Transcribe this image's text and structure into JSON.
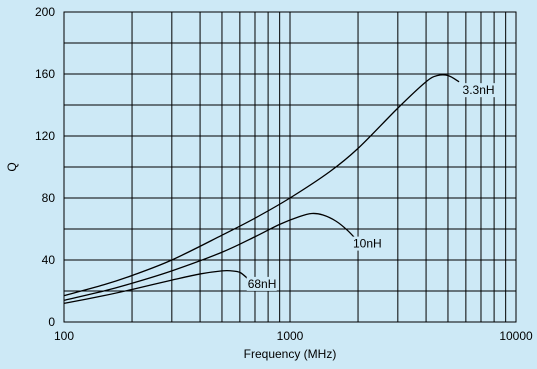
{
  "chart_data": {
    "type": "line",
    "title": "",
    "xlabel": "Frequency (MHz)",
    "ylabel": "Q",
    "x_scale": "log",
    "xlim": [
      100,
      10000
    ],
    "ylim": [
      0,
      200
    ],
    "x_ticks": [
      100,
      1000,
      10000
    ],
    "y_ticks": [
      0,
      40,
      80,
      120,
      160,
      200
    ],
    "grid": true,
    "legend": "none",
    "series": [
      {
        "name": "3.3nH",
        "x": [
          100,
          150,
          200,
          300,
          500,
          700,
          1000,
          1500,
          2000,
          3000,
          4000,
          4500,
          5000,
          5600
        ],
        "y": [
          17,
          24,
          30,
          40,
          56,
          67,
          80,
          97,
          112,
          138,
          155,
          159,
          159,
          155
        ]
      },
      {
        "name": "10nH",
        "x": [
          100,
          150,
          200,
          300,
          500,
          700,
          900,
          1100,
          1250,
          1400,
          1600,
          1800,
          2000
        ],
        "y": [
          14,
          20,
          25,
          33,
          45,
          55,
          63,
          68,
          70,
          69,
          65,
          59,
          52
        ]
      },
      {
        "name": "68nH",
        "x": [
          100,
          150,
          200,
          300,
          400,
          500,
          550,
          600,
          650
        ],
        "y": [
          12,
          17,
          21,
          27,
          31,
          33,
          33,
          32,
          28
        ]
      }
    ],
    "annotations": [
      {
        "text": "3.3nH",
        "x": 5800,
        "y": 147
      },
      {
        "text": "10nH",
        "x": 1900,
        "y": 48
      },
      {
        "text": "68nH",
        "x": 650,
        "y": 22
      }
    ]
  }
}
